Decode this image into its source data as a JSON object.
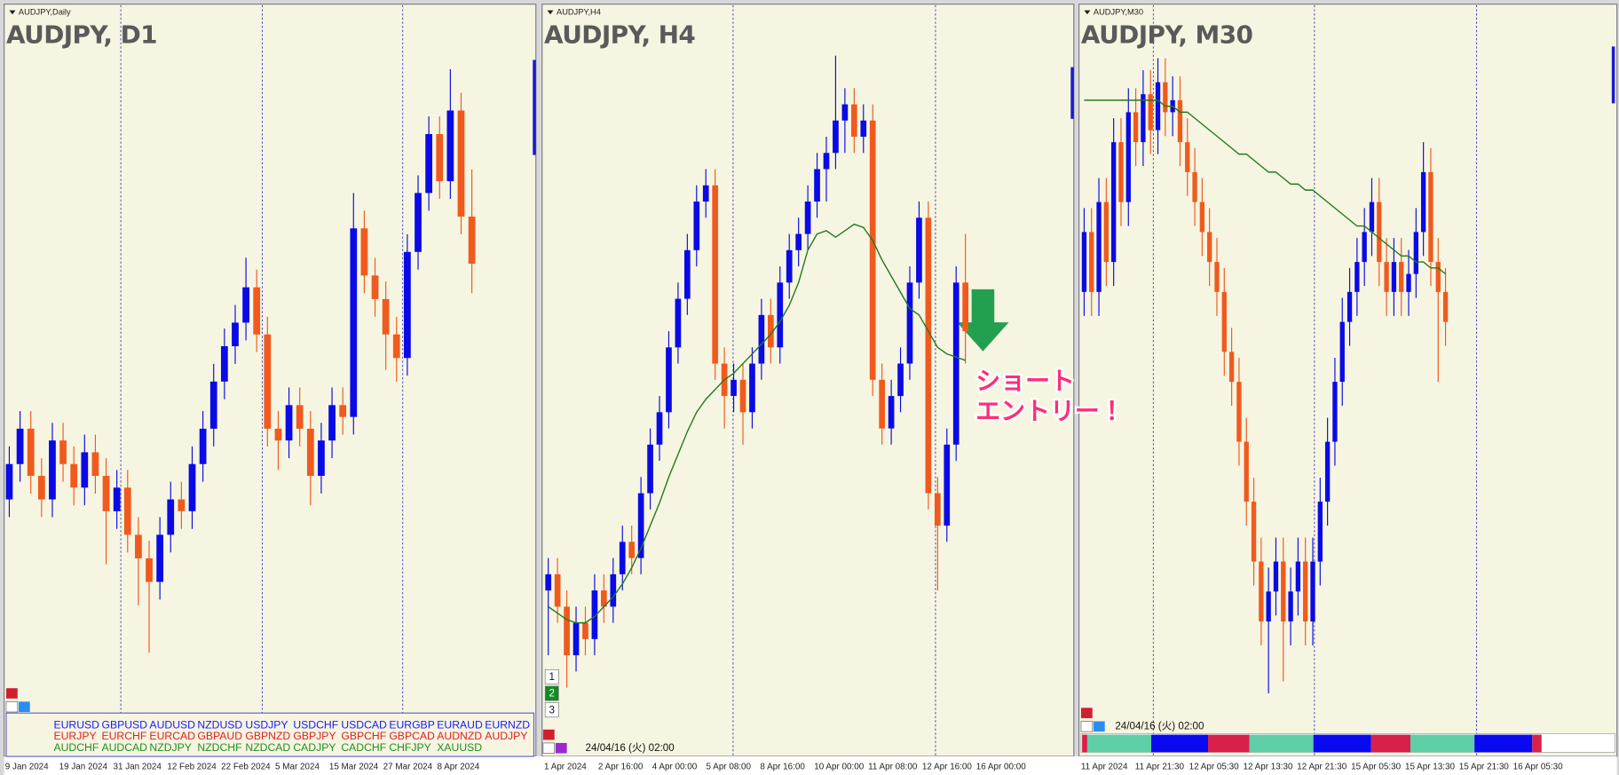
{
  "colors": {
    "up": "#0a0ae6",
    "down": "#f05a1e",
    "ma": "#1f7a1f"
  },
  "panels": [
    {
      "label": "AUDJPY,Daily",
      "title": "AUDJPY, D1",
      "time_labels": [
        "9 Jan 2024",
        "19 Jan 2024",
        "31 Jan 2024",
        "12 Feb 2024",
        "22 Feb 2024",
        "5 Mar 2024",
        "15 Mar 2024",
        "27 Mar 2024",
        "8 Apr 2024"
      ],
      "ylim": [
        95.4,
        101.45
      ],
      "candles": [
        [
          97.3,
          97.75,
          97.15,
          97.6
        ],
        [
          97.6,
          98.05,
          97.45,
          97.9
        ],
        [
          97.9,
          98.05,
          97.35,
          97.5
        ],
        [
          97.5,
          97.65,
          97.15,
          97.3
        ],
        [
          97.3,
          97.95,
          97.15,
          97.8
        ],
        [
          97.8,
          97.95,
          97.45,
          97.6
        ],
        [
          97.6,
          97.75,
          97.25,
          97.4
        ],
        [
          97.4,
          97.85,
          97.25,
          97.7
        ],
        [
          97.7,
          97.85,
          97.35,
          97.5
        ],
        [
          97.5,
          97.65,
          96.75,
          97.2
        ],
        [
          97.2,
          97.55,
          97.05,
          97.4
        ],
        [
          97.4,
          97.55,
          96.85,
          97.0
        ],
        [
          97.0,
          97.15,
          96.4,
          96.8
        ],
        [
          96.8,
          96.95,
          96.0,
          96.6
        ],
        [
          96.6,
          97.15,
          96.45,
          97.0
        ],
        [
          97.0,
          97.45,
          96.85,
          97.3
        ],
        [
          97.3,
          97.45,
          97.05,
          97.2
        ],
        [
          97.2,
          97.75,
          97.05,
          97.6
        ],
        [
          97.6,
          98.05,
          97.45,
          97.9
        ],
        [
          97.9,
          98.45,
          97.75,
          98.3
        ],
        [
          98.3,
          98.75,
          98.15,
          98.6
        ],
        [
          98.6,
          98.95,
          98.45,
          98.8
        ],
        [
          98.8,
          99.35,
          98.65,
          99.1
        ],
        [
          99.1,
          99.25,
          98.55,
          98.7
        ],
        [
          98.7,
          98.85,
          97.75,
          97.9
        ],
        [
          97.9,
          98.05,
          97.55,
          97.8
        ],
        [
          97.8,
          98.25,
          97.65,
          98.1
        ],
        [
          98.1,
          98.25,
          97.75,
          97.9
        ],
        [
          97.9,
          98.05,
          97.25,
          97.5
        ],
        [
          97.5,
          97.95,
          97.35,
          97.8
        ],
        [
          97.8,
          98.25,
          97.65,
          98.1
        ],
        [
          98.1,
          98.25,
          97.85,
          98.0
        ],
        [
          98.0,
          99.9,
          97.85,
          99.6
        ],
        [
          99.6,
          99.75,
          99.05,
          99.2
        ],
        [
          99.2,
          99.35,
          98.85,
          99.0
        ],
        [
          99.0,
          99.15,
          98.4,
          98.7
        ],
        [
          98.7,
          98.85,
          98.3,
          98.5
        ],
        [
          98.5,
          99.55,
          98.35,
          99.4
        ],
        [
          99.4,
          100.05,
          99.25,
          99.9
        ],
        [
          99.9,
          100.55,
          99.75,
          100.4
        ],
        [
          100.4,
          100.55,
          99.85,
          100.0
        ],
        [
          100.0,
          100.95,
          99.85,
          100.6
        ],
        [
          100.6,
          100.75,
          99.55,
          99.7
        ],
        [
          99.7,
          100.1,
          99.05,
          99.3
        ]
      ]
    },
    {
      "label": "AUDJPY,H4",
      "title": "AUDJPY, H4",
      "time_labels": [
        "1 Apr 2024",
        "2 Apr 16:00",
        "4 Apr 00:00",
        "5 Apr 08:00",
        "8 Apr 16:00",
        "10 Apr 00:00",
        "11 Apr 08:00",
        "12 Apr 16:00",
        "16 Apr 00:00"
      ],
      "ylim": [
        98.84,
        101.04
      ],
      "candles": [
        [
          99.25,
          99.35,
          99.05,
          99.3
        ],
        [
          99.3,
          99.35,
          99.15,
          99.2
        ],
        [
          99.2,
          99.25,
          98.95,
          99.05
        ],
        [
          99.05,
          99.2,
          99.0,
          99.15
        ],
        [
          99.15,
          99.2,
          99.05,
          99.1
        ],
        [
          99.1,
          99.3,
          99.05,
          99.25
        ],
        [
          99.25,
          99.3,
          99.15,
          99.2
        ],
        [
          99.2,
          99.35,
          99.15,
          99.3
        ],
        [
          99.3,
          99.45,
          99.25,
          99.4
        ],
        [
          99.4,
          99.45,
          99.3,
          99.35
        ],
        [
          99.35,
          99.6,
          99.3,
          99.55
        ],
        [
          99.55,
          99.75,
          99.5,
          99.7
        ],
        [
          99.7,
          99.85,
          99.65,
          99.8
        ],
        [
          99.8,
          100.05,
          99.75,
          100.0
        ],
        [
          100.0,
          100.2,
          99.95,
          100.15
        ],
        [
          100.15,
          100.35,
          100.1,
          100.3
        ],
        [
          100.3,
          100.5,
          100.25,
          100.45
        ],
        [
          100.45,
          100.55,
          100.4,
          100.5
        ],
        [
          100.5,
          100.55,
          99.9,
          99.95
        ],
        [
          99.95,
          100.0,
          99.75,
          99.85
        ],
        [
          99.85,
          99.95,
          99.8,
          99.9
        ],
        [
          99.9,
          99.95,
          99.7,
          99.8
        ],
        [
          99.8,
          100.0,
          99.75,
          99.95
        ],
        [
          99.95,
          100.15,
          99.9,
          100.1
        ],
        [
          100.1,
          100.15,
          99.95,
          100.0
        ],
        [
          100.0,
          100.25,
          99.95,
          100.2
        ],
        [
          100.2,
          100.35,
          100.15,
          100.3
        ],
        [
          100.3,
          100.4,
          100.25,
          100.35
        ],
        [
          100.35,
          100.5,
          100.3,
          100.45
        ],
        [
          100.45,
          100.6,
          100.4,
          100.55
        ],
        [
          100.55,
          100.65,
          100.45,
          100.6
        ],
        [
          100.6,
          100.9,
          100.55,
          100.7
        ],
        [
          100.7,
          100.8,
          100.6,
          100.75
        ],
        [
          100.75,
          100.8,
          100.6,
          100.65
        ],
        [
          100.65,
          100.75,
          100.6,
          100.7
        ],
        [
          100.7,
          100.75,
          99.85,
          99.9
        ],
        [
          99.9,
          99.95,
          99.7,
          99.75
        ],
        [
          99.75,
          99.9,
          99.7,
          99.85
        ],
        [
          99.85,
          100.0,
          99.8,
          99.95
        ],
        [
          99.95,
          100.25,
          99.9,
          100.2
        ],
        [
          100.2,
          100.45,
          100.15,
          100.4
        ],
        [
          100.4,
          100.45,
          99.5,
          99.55
        ],
        [
          99.55,
          99.6,
          99.25,
          99.45
        ],
        [
          99.45,
          99.75,
          99.4,
          99.7
        ],
        [
          99.7,
          100.25,
          99.65,
          100.2
        ],
        [
          100.2,
          100.35,
          99.95,
          100.05
        ]
      ],
      "ma": [
        99.2,
        99.18,
        99.16,
        99.15,
        99.15,
        99.17,
        99.2,
        99.23,
        99.27,
        99.32,
        99.38,
        99.45,
        99.52,
        99.6,
        99.67,
        99.74,
        99.8,
        99.84,
        99.87,
        99.9,
        99.92,
        99.95,
        99.98,
        100.01,
        100.04,
        100.08,
        100.13,
        100.2,
        100.3,
        100.35,
        100.36,
        100.34,
        100.36,
        100.38,
        100.37,
        100.33,
        100.27,
        100.22,
        100.17,
        100.12,
        100.1,
        100.05,
        100.0,
        99.98,
        99.97,
        99.96
      ],
      "buttons": [
        "1",
        "2",
        "3"
      ],
      "timestamp": "24/04/16 (火) 02:00",
      "annotation": [
        "ショート",
        "エントリー！"
      ]
    },
    {
      "label": "AUDJPY,M30",
      "title": "AUDJPY, M30",
      "time_labels": [
        "11 Apr 2024",
        "11 Apr 21:30",
        "12 Apr 05:30",
        "12 Apr 13:30",
        "12 Apr 21:30",
        "15 Apr 05:30",
        "15 Apr 13:30",
        "15 Apr 21:30",
        "16 Apr 05:30"
      ],
      "ylim": [
        99.33,
        100.52
      ],
      "candles": [
        [
          100.05,
          100.19,
          100.01,
          100.15
        ],
        [
          100.15,
          100.19,
          100.01,
          100.05
        ],
        [
          100.05,
          100.24,
          100.01,
          100.2
        ],
        [
          100.2,
          100.24,
          100.06,
          100.1
        ],
        [
          100.1,
          100.34,
          100.06,
          100.3
        ],
        [
          100.3,
          100.34,
          100.16,
          100.2
        ],
        [
          100.2,
          100.39,
          100.16,
          100.35
        ],
        [
          100.35,
          100.39,
          100.26,
          100.3
        ],
        [
          100.3,
          100.42,
          100.26,
          100.38
        ],
        [
          100.38,
          100.42,
          100.28,
          100.32
        ],
        [
          100.32,
          100.44,
          100.28,
          100.4
        ],
        [
          100.4,
          100.44,
          100.31,
          100.35
        ],
        [
          100.35,
          100.41,
          100.31,
          100.37
        ],
        [
          100.37,
          100.41,
          100.26,
          100.3
        ],
        [
          100.3,
          100.34,
          100.21,
          100.25
        ],
        [
          100.25,
          100.29,
          100.16,
          100.2
        ],
        [
          100.2,
          100.24,
          100.11,
          100.15
        ],
        [
          100.15,
          100.19,
          100.06,
          100.1
        ],
        [
          100.1,
          100.14,
          100.01,
          100.05
        ],
        [
          100.05,
          100.09,
          99.91,
          99.95
        ],
        [
          99.95,
          99.99,
          99.86,
          99.9
        ],
        [
          99.9,
          99.94,
          99.76,
          99.8
        ],
        [
          99.8,
          99.84,
          99.66,
          99.7
        ],
        [
          99.7,
          99.74,
          99.56,
          99.6
        ],
        [
          99.6,
          99.64,
          99.46,
          99.5
        ],
        [
          99.5,
          99.59,
          99.38,
          99.55
        ],
        [
          99.55,
          99.64,
          99.51,
          99.6
        ],
        [
          99.6,
          99.64,
          99.4,
          99.5
        ],
        [
          99.5,
          99.59,
          99.46,
          99.55
        ],
        [
          99.55,
          99.64,
          99.51,
          99.6
        ],
        [
          99.6,
          99.64,
          99.46,
          99.5
        ],
        [
          99.5,
          99.64,
          99.46,
          99.6
        ],
        [
          99.6,
          99.74,
          99.56,
          99.7
        ],
        [
          99.7,
          99.84,
          99.66,
          99.8
        ],
        [
          99.8,
          99.94,
          99.76,
          99.9
        ],
        [
          99.9,
          100.04,
          99.86,
          100.0
        ],
        [
          100.0,
          100.09,
          99.96,
          100.05
        ],
        [
          100.05,
          100.14,
          100.01,
          100.1
        ],
        [
          100.1,
          100.19,
          100.06,
          100.15
        ],
        [
          100.15,
          100.24,
          100.11,
          100.2
        ],
        [
          100.2,
          100.24,
          100.06,
          100.1
        ],
        [
          100.1,
          100.14,
          100.01,
          100.05
        ],
        [
          100.05,
          100.14,
          100.01,
          100.1
        ],
        [
          100.1,
          100.14,
          100.01,
          100.05
        ],
        [
          100.05,
          100.12,
          100.01,
          100.08
        ],
        [
          100.08,
          100.19,
          100.04,
          100.15
        ],
        [
          100.15,
          100.3,
          100.11,
          100.25
        ],
        [
          100.25,
          100.29,
          100.06,
          100.1
        ],
        [
          100.1,
          100.14,
          99.9,
          100.05
        ],
        [
          100.05,
          100.09,
          99.96,
          100.0
        ]
      ],
      "ma": [
        100.37,
        100.37,
        100.37,
        100.37,
        100.37,
        100.37,
        100.37,
        100.37,
        100.37,
        100.37,
        100.37,
        100.36,
        100.36,
        100.35,
        100.35,
        100.34,
        100.33,
        100.32,
        100.31,
        100.3,
        100.29,
        100.28,
        100.28,
        100.27,
        100.26,
        100.25,
        100.25,
        100.24,
        100.23,
        100.23,
        100.22,
        100.22,
        100.21,
        100.2,
        100.19,
        100.18,
        100.17,
        100.16,
        100.16,
        100.15,
        100.14,
        100.13,
        100.12,
        100.11,
        100.11,
        100.1,
        100.1,
        100.09,
        100.09,
        100.08
      ],
      "timestamp": "24/04/16 (火) 02:00"
    }
  ],
  "symbol_grid": [
    [
      "EURUSD",
      "GBPUSD",
      "AUDUSD",
      "NZDUSD",
      "USDJPY",
      "USDCHF",
      "USDCAD",
      "EURGBP",
      "EURAUD",
      "EURNZD"
    ],
    [
      "EURJPY",
      "EURCHF",
      "EURCAD",
      "GBPAUD",
      "GBPNZD",
      "GBPJPY",
      "GBPCHF",
      "GBPCAD",
      "AUDNZD",
      "AUDJPY"
    ],
    [
      "AUDCHF",
      "AUDCAD",
      "NZDJPY",
      "NZDCHF",
      "NZDCAD",
      "CADJPY",
      "CADCHF",
      "CHFJPY",
      "XAUUSD"
    ]
  ]
}
